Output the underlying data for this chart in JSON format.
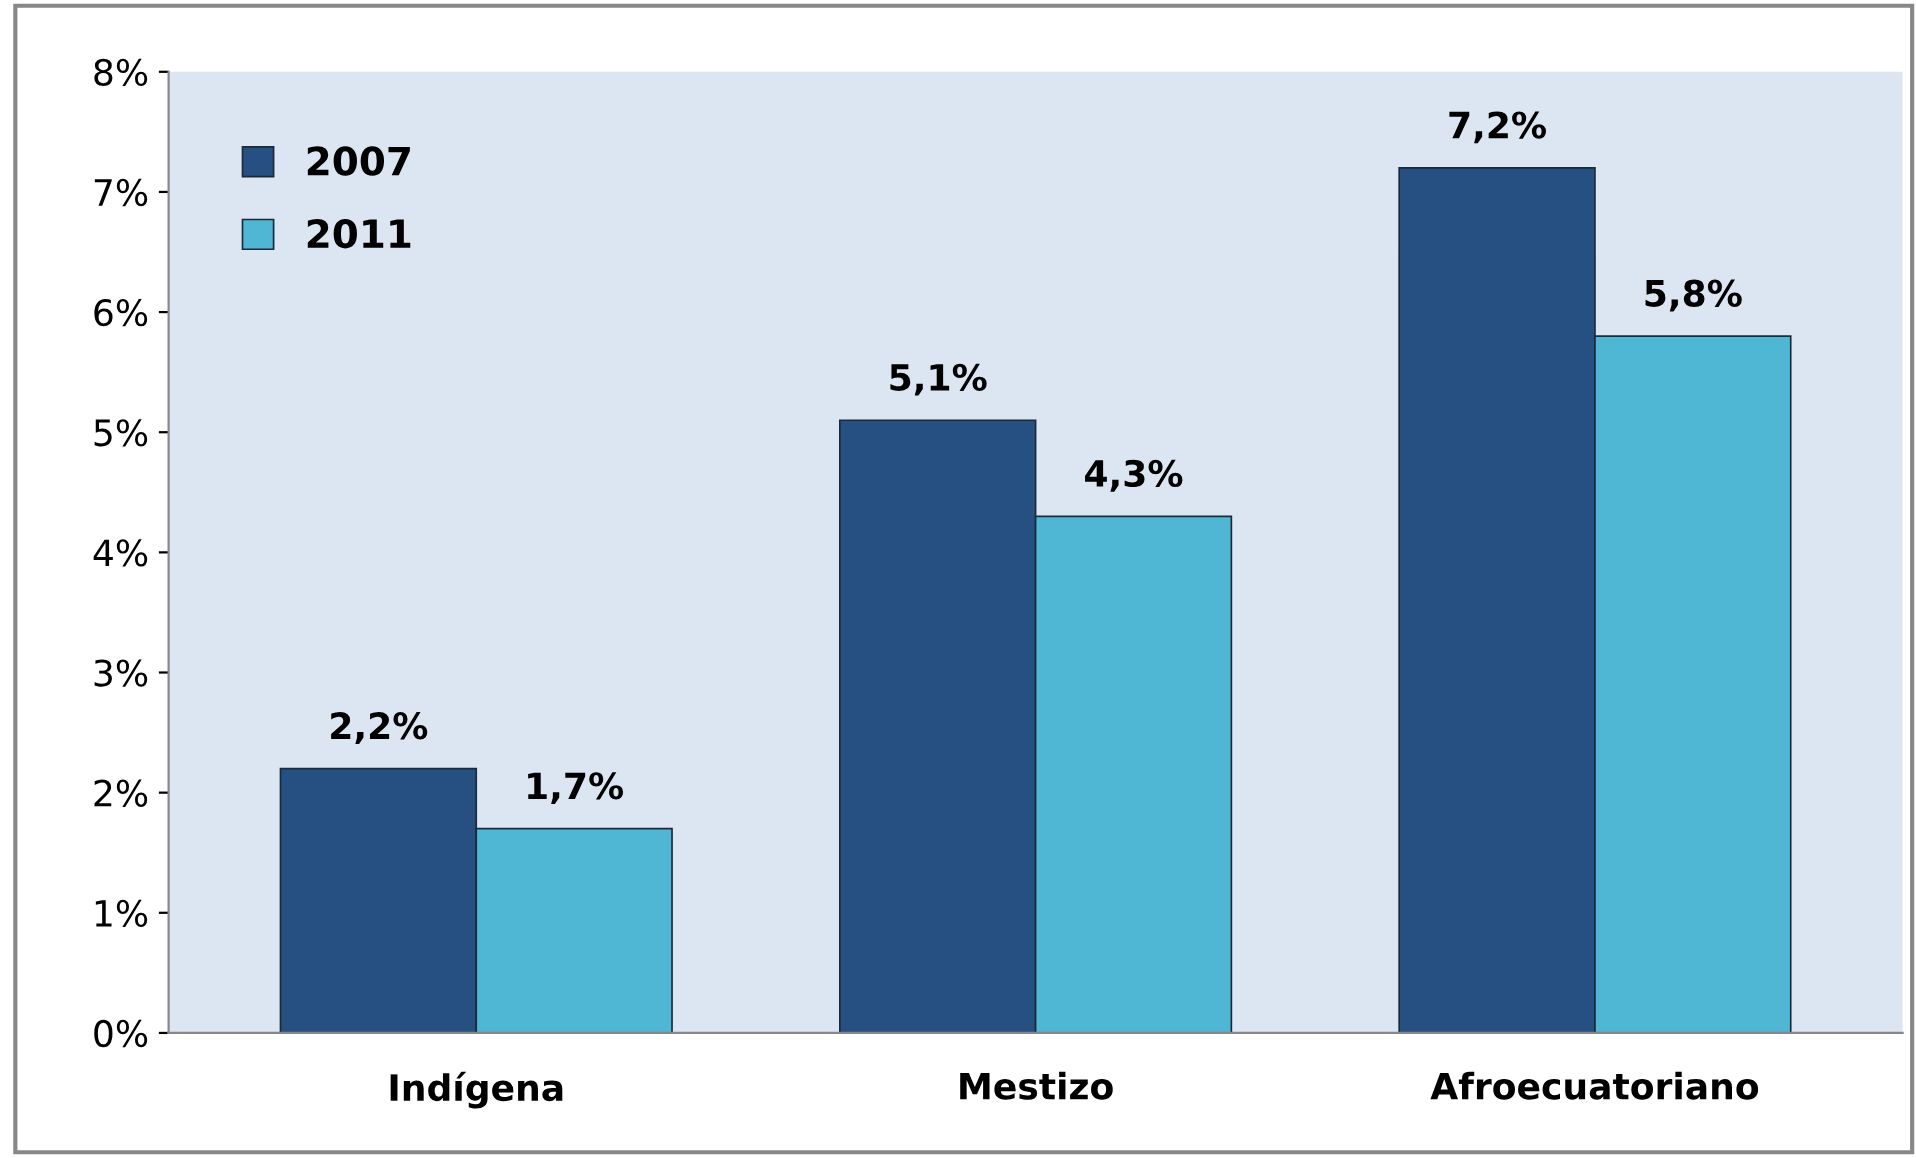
{
  "chart_data": {
    "type": "bar",
    "categories": [
      "Indígena",
      "Mestizo",
      "Afroecuatoriano"
    ],
    "series": [
      {
        "name": "2007",
        "color": "#264f82",
        "values": [
          2.2,
          5.1,
          7.2
        ],
        "value_labels": [
          "2,2%",
          "5,1%",
          "7,2%"
        ]
      },
      {
        "name": "2011",
        "color": "#4fb6d3",
        "values": [
          1.7,
          4.3,
          5.8
        ],
        "value_labels": [
          "1,7%",
          "4,3%",
          "5,8%"
        ]
      }
    ],
    "ylim": [
      0,
      8
    ],
    "yticks": [
      {
        "value": 0,
        "label": "0%"
      },
      {
        "value": 1,
        "label": "1%"
      },
      {
        "value": 2,
        "label": "2%"
      },
      {
        "value": 3,
        "label": "3%"
      },
      {
        "value": 4,
        "label": "4%"
      },
      {
        "value": 5,
        "label": "5%"
      },
      {
        "value": 6,
        "label": "6%"
      },
      {
        "value": 7,
        "label": "7%"
      },
      {
        "value": 8,
        "label": "8%"
      }
    ],
    "grid": false,
    "legend": "top left"
  }
}
